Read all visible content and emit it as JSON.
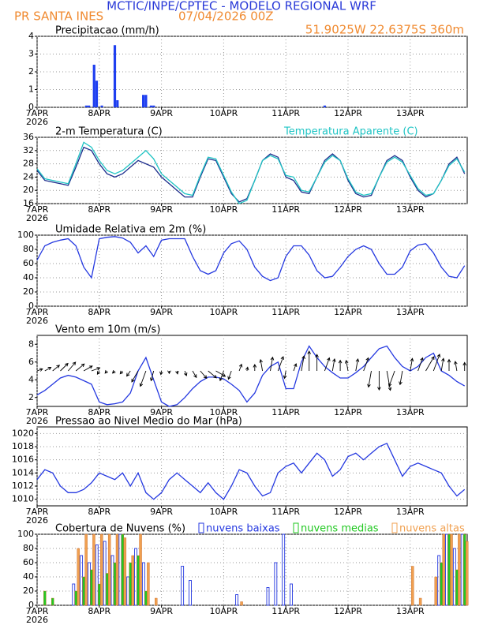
{
  "header": {
    "title": "MCTIC/INPE/CPTEC - MODELO REGIONAL WRF",
    "station": "PR SANTA INES",
    "datetime": "07/04/2026 00Z",
    "location": "51.9025W 22.6375S 360m"
  },
  "chart_data": [
    {
      "type": "bar",
      "title": "Precipitacao (mm/h)",
      "color": "#1f3ff0",
      "x": [
        19,
        20,
        22,
        23,
        25,
        30,
        31,
        41,
        42,
        44,
        45,
        111
      ],
      "values": [
        0.1,
        0.1,
        2.4,
        1.5,
        0.1,
        3.5,
        0.4,
        0.7,
        0.7,
        0.1,
        0.1,
        0.1
      ],
      "xlim": [
        0,
        166
      ],
      "xticks": [
        {
          "value": 0,
          "label": "7APR"
        },
        {
          "value": 24,
          "label": "8APR"
        },
        {
          "value": 48,
          "label": "9APR"
        },
        {
          "value": 72,
          "label": "10APR"
        },
        {
          "value": 96,
          "label": "11APR"
        },
        {
          "value": 120,
          "label": "12APR"
        },
        {
          "value": 144,
          "label": "13APR"
        }
      ],
      "year": "2026",
      "ylim": [
        0,
        4
      ],
      "yticks": [
        0,
        1,
        2,
        3,
        4
      ],
      "grid": true
    },
    {
      "type": "line",
      "x": [
        0,
        3,
        6,
        9,
        12,
        15,
        18,
        21,
        24,
        27,
        30,
        33,
        36,
        39,
        42,
        45,
        48,
        51,
        54,
        57,
        60,
        63,
        66,
        69,
        72,
        75,
        78,
        81,
        84,
        87,
        90,
        93,
        96,
        99,
        102,
        105,
        108,
        111,
        114,
        117,
        120,
        123,
        126,
        129,
        132,
        135,
        138,
        141,
        144,
        147,
        150,
        153,
        156,
        159,
        162,
        165
      ],
      "series": [
        {
          "name": "2-m Temperatura (C)",
          "color": "#1c2c8c",
          "values": [
            26,
            23,
            22.5,
            22,
            21.5,
            27,
            33,
            32,
            28,
            25,
            24,
            25,
            27,
            29,
            28,
            27,
            24,
            22,
            20,
            18,
            18,
            24,
            29.5,
            29,
            24,
            19,
            16.5,
            17.5,
            23,
            29,
            31,
            30,
            24,
            23,
            19.5,
            19,
            24,
            29,
            31,
            29,
            23,
            19,
            18,
            18.5,
            24,
            29,
            30.5,
            29,
            24,
            20,
            18,
            19,
            23,
            28,
            30,
            25
          ]
        },
        {
          "name": "Temperatura Aparente (C)",
          "color": "#1fc4c4",
          "values": [
            26.5,
            23.5,
            23,
            22.5,
            22,
            28,
            34.5,
            33,
            29,
            26,
            25,
            26,
            28,
            30,
            32,
            29.5,
            25,
            23,
            21,
            19,
            18.5,
            24.5,
            30,
            29.5,
            24.5,
            19.5,
            16,
            17,
            23,
            29,
            30.5,
            29.5,
            24.5,
            24,
            20,
            19.5,
            24,
            28.5,
            30.5,
            29,
            23.5,
            19.5,
            18.5,
            19,
            24,
            28.5,
            30,
            28.5,
            24.5,
            20.5,
            18.5,
            19,
            23,
            27.5,
            29.5,
            25.5
          ]
        }
      ],
      "xlim": [
        0,
        166
      ],
      "xticks": [
        {
          "value": 0,
          "label": "7APR"
        },
        {
          "value": 24,
          "label": "8APR"
        },
        {
          "value": 48,
          "label": "9APR"
        },
        {
          "value": 72,
          "label": "10APR"
        },
        {
          "value": 96,
          "label": "11APR"
        },
        {
          "value": 120,
          "label": "12APR"
        },
        {
          "value": 144,
          "label": "13APR"
        }
      ],
      "year": "2026",
      "ylim": [
        16,
        36
      ],
      "yticks": [
        16,
        20,
        24,
        28,
        32,
        36
      ],
      "grid": true
    },
    {
      "type": "line",
      "title": "Umidade Relativa em 2m (%)",
      "color": "#2438e0",
      "x": [
        0,
        3,
        6,
        9,
        12,
        15,
        18,
        21,
        24,
        27,
        30,
        33,
        36,
        39,
        42,
        45,
        48,
        51,
        54,
        57,
        60,
        63,
        66,
        69,
        72,
        75,
        78,
        81,
        84,
        87,
        90,
        93,
        96,
        99,
        102,
        105,
        108,
        111,
        114,
        117,
        120,
        123,
        126,
        129,
        132,
        135,
        138,
        141,
        144,
        147,
        150,
        153,
        156,
        159,
        162,
        165
      ],
      "values": [
        65,
        85,
        90,
        93,
        95,
        85,
        55,
        40,
        95,
        97,
        98,
        96,
        90,
        75,
        85,
        70,
        93,
        95,
        95,
        95,
        70,
        50,
        45,
        50,
        75,
        88,
        92,
        80,
        55,
        42,
        36,
        40,
        70,
        85,
        85,
        72,
        50,
        40,
        42,
        55,
        70,
        80,
        85,
        80,
        60,
        45,
        45,
        55,
        78,
        86,
        88,
        75,
        55,
        42,
        40,
        57
      ],
      "xlim": [
        0,
        166
      ],
      "xticks": [
        {
          "value": 0,
          "label": "7APR"
        },
        {
          "value": 24,
          "label": "8APR"
        },
        {
          "value": 48,
          "label": "9APR"
        },
        {
          "value": 72,
          "label": "10APR"
        },
        {
          "value": 96,
          "label": "11APR"
        },
        {
          "value": 120,
          "label": "12APR"
        },
        {
          "value": 144,
          "label": "13APR"
        }
      ],
      "year": "2026",
      "ylim": [
        0,
        100
      ],
      "yticks": [
        0,
        20,
        40,
        60,
        80,
        100
      ],
      "grid": true
    },
    {
      "type": "wind",
      "title": "Vento em 10m (m/s)",
      "color": "#2438e0",
      "x": [
        0,
        3,
        6,
        9,
        12,
        15,
        18,
        21,
        24,
        27,
        30,
        33,
        36,
        39,
        42,
        45,
        48,
        51,
        54,
        57,
        60,
        63,
        66,
        69,
        72,
        75,
        78,
        81,
        84,
        87,
        90,
        93,
        96,
        99,
        102,
        105,
        108,
        111,
        114,
        117,
        120,
        123,
        126,
        129,
        132,
        135,
        138,
        141,
        144,
        147,
        150,
        153,
        156,
        159,
        162,
        165
      ],
      "values": [
        2.3,
        2.8,
        3.5,
        4.2,
        4.5,
        4.3,
        3.9,
        3.5,
        1.5,
        1.2,
        1.3,
        1.5,
        2.5,
        5,
        6.5,
        4,
        1.5,
        1,
        1.2,
        2,
        3,
        3.8,
        4.3,
        4.3,
        4.1,
        3.5,
        2.8,
        1.5,
        2.5,
        4.5,
        5.5,
        6,
        3,
        3,
        6,
        7.8,
        6.5,
        5.5,
        4.8,
        4.2,
        4.2,
        4.8,
        5.5,
        6.5,
        7.5,
        7.8,
        6.5,
        5.5,
        5,
        5.5,
        6.5,
        7,
        5,
        4.5,
        3.8,
        3.3
      ],
      "directions": [
        250,
        240,
        230,
        225,
        220,
        230,
        240,
        250,
        30,
        40,
        45,
        40,
        35,
        30,
        20,
        15,
        10,
        0,
        350,
        340,
        330,
        320,
        310,
        300,
        20,
        20,
        200,
        190,
        180,
        170,
        190,
        200,
        10,
        200,
        190,
        180,
        180,
        200,
        190,
        180,
        170,
        190,
        200,
        10,
        0,
        350,
        20,
        10,
        190,
        200,
        210,
        200,
        190,
        180,
        170,
        180
      ],
      "xlim": [
        0,
        166
      ],
      "xticks": [
        {
          "value": 0,
          "label": "7APR"
        },
        {
          "value": 24,
          "label": "8APR"
        },
        {
          "value": 48,
          "label": "9APR"
        },
        {
          "value": 72,
          "label": "10APR"
        },
        {
          "value": 96,
          "label": "11APR"
        },
        {
          "value": 120,
          "label": "12APR"
        },
        {
          "value": 144,
          "label": "13APR"
        }
      ],
      "year": "2026",
      "ylim": [
        1,
        9
      ],
      "yticks": [
        2,
        4,
        6,
        8
      ],
      "grid": false
    },
    {
      "type": "line",
      "title": "Pressao ao Nivel Medio do Mar (hPa)",
      "color": "#2438e0",
      "x": [
        0,
        3,
        6,
        9,
        12,
        15,
        18,
        21,
        24,
        27,
        30,
        33,
        36,
        39,
        42,
        45,
        48,
        51,
        54,
        57,
        60,
        63,
        66,
        69,
        72,
        75,
        78,
        81,
        84,
        87,
        90,
        93,
        96,
        99,
        102,
        105,
        108,
        111,
        114,
        117,
        120,
        123,
        126,
        129,
        132,
        135,
        138,
        141,
        144,
        147,
        150,
        153,
        156,
        159,
        162,
        165
      ],
      "values": [
        1013,
        1014.5,
        1014,
        1012,
        1011,
        1011,
        1011.5,
        1012.5,
        1014,
        1013.5,
        1013,
        1014,
        1012,
        1014,
        1011,
        1010,
        1011,
        1013,
        1014,
        1013,
        1012,
        1011,
        1012.5,
        1011,
        1010,
        1012,
        1014.5,
        1014,
        1012,
        1010.5,
        1011,
        1014,
        1015,
        1015.5,
        1014,
        1015.5,
        1017,
        1016,
        1013.5,
        1014.5,
        1016.5,
        1017,
        1016,
        1017,
        1018,
        1018.5,
        1016,
        1013.5,
        1015,
        1015.5,
        1015,
        1014.5,
        1014,
        1012,
        1010.5,
        1011.5
      ],
      "xlim": [
        0,
        166
      ],
      "xticks": [
        {
          "value": 0,
          "label": "7APR"
        },
        {
          "value": 24,
          "label": "8APR"
        },
        {
          "value": 48,
          "label": "9APR"
        },
        {
          "value": 72,
          "label": "10APR"
        },
        {
          "value": 96,
          "label": "11APR"
        },
        {
          "value": 120,
          "label": "12APR"
        },
        {
          "value": 144,
          "label": "13APR"
        }
      ],
      "year": "2026",
      "ylim": [
        1009,
        1021
      ],
      "yticks": [
        1010,
        1012,
        1014,
        1016,
        1018,
        1020
      ],
      "grid": true
    },
    {
      "type": "bar",
      "title": "Cobertura de Nuvens (%)",
      "x": [
        0,
        3,
        6,
        9,
        12,
        15,
        18,
        21,
        24,
        27,
        30,
        33,
        36,
        39,
        42,
        45,
        48,
        51,
        54,
        57,
        60,
        63,
        66,
        69,
        72,
        75,
        78,
        81,
        84,
        87,
        90,
        93,
        96,
        99,
        102,
        105,
        108,
        111,
        114,
        117,
        120,
        123,
        126,
        129,
        132,
        135,
        138,
        141,
        144,
        147,
        150,
        153,
        156,
        159,
        162,
        165
      ],
      "series": [
        {
          "name": "nuvens baixas",
          "color": "#2438e0",
          "filled": false,
          "values": [
            0,
            0,
            0,
            0,
            0,
            30,
            70,
            60,
            85,
            90,
            70,
            100,
            40,
            80,
            60,
            0,
            0,
            0,
            0,
            55,
            35,
            0,
            0,
            0,
            0,
            0,
            15,
            0,
            0,
            0,
            25,
            60,
            100,
            30,
            0,
            0,
            0,
            0,
            0,
            0,
            0,
            0,
            0,
            0,
            0,
            0,
            0,
            0,
            0,
            0,
            0,
            0,
            70,
            100,
            80,
            100
          ]
        },
        {
          "name": "nuvens medias",
          "color": "#22c822",
          "filled": true,
          "values": [
            0,
            20,
            10,
            0,
            0,
            20,
            40,
            50,
            30,
            45,
            60,
            100,
            60,
            70,
            20,
            0,
            0,
            0,
            0,
            0,
            0,
            0,
            0,
            0,
            0,
            0,
            0,
            0,
            0,
            0,
            0,
            0,
            0,
            0,
            0,
            0,
            0,
            0,
            0,
            0,
            0,
            0,
            0,
            0,
            0,
            0,
            0,
            0,
            0,
            0,
            0,
            0,
            60,
            100,
            50,
            100
          ]
        },
        {
          "name": "nuvens altas",
          "color": "#f0a050",
          "filled": true,
          "values": [
            0,
            0,
            0,
            0,
            0,
            80,
            100,
            100,
            100,
            100,
            100,
            95,
            70,
            100,
            60,
            10,
            0,
            0,
            0,
            0,
            0,
            0,
            0,
            0,
            0,
            0,
            5,
            0,
            0,
            0,
            0,
            0,
            0,
            0,
            0,
            0,
            0,
            0,
            0,
            0,
            0,
            0,
            0,
            0,
            0,
            0,
            0,
            0,
            55,
            10,
            0,
            40,
            100,
            100,
            100,
            90
          ]
        }
      ],
      "xlim": [
        0,
        166
      ],
      "xticks": [
        {
          "value": 0,
          "label": "7APR"
        },
        {
          "value": 24,
          "label": "8APR"
        },
        {
          "value": 48,
          "label": "9APR"
        },
        {
          "value": 72,
          "label": "10APR"
        },
        {
          "value": 96,
          "label": "11APR"
        },
        {
          "value": 120,
          "label": "12APR"
        },
        {
          "value": 144,
          "label": "13APR"
        }
      ],
      "year": "2026",
      "ylim": [
        0,
        100
      ],
      "yticks": [
        0,
        20,
        40,
        60,
        80,
        100
      ],
      "grid": true
    }
  ]
}
